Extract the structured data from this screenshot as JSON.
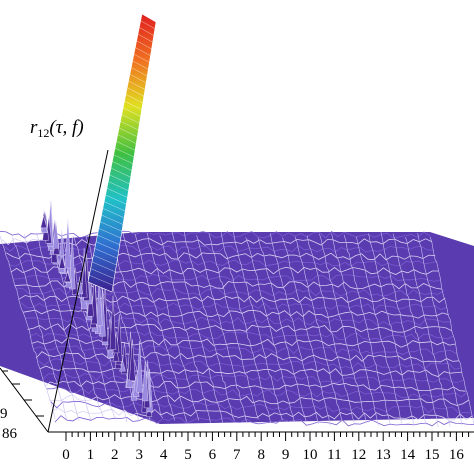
{
  "chart_data": {
    "type": "surface3d",
    "title": "",
    "zlabel": "r12(τ, f)",
    "zlabel_parts": {
      "symbol": "r",
      "subscript": "12",
      "args": "(τ, f)"
    },
    "xlabel": "",
    "ylabel": "",
    "x_ticks": [
      "0",
      "1",
      "2",
      "3",
      "4",
      "5",
      "6",
      "7",
      "8",
      "9",
      "10",
      "11",
      "12",
      "13",
      "14",
      "15",
      "16",
      "17"
    ],
    "y_ticks_visible": [
      "9",
      "86"
    ],
    "xlim": [
      0,
      17.5
    ],
    "surface": {
      "noise_floor": 0.04,
      "ridge": {
        "x_from": 0,
        "x_to": 4.5,
        "peak_amplitude": 0.35,
        "description_color": "#4b2a9a"
      },
      "main_peak": {
        "x": 3.9,
        "relative_height": 1.0
      }
    },
    "colormap": [
      "#3b1f8f",
      "#2f6fd0",
      "#20c0c8",
      "#40c040",
      "#e0e020",
      "#f07020",
      "#e02020"
    ],
    "grid": false,
    "legend": "none"
  }
}
